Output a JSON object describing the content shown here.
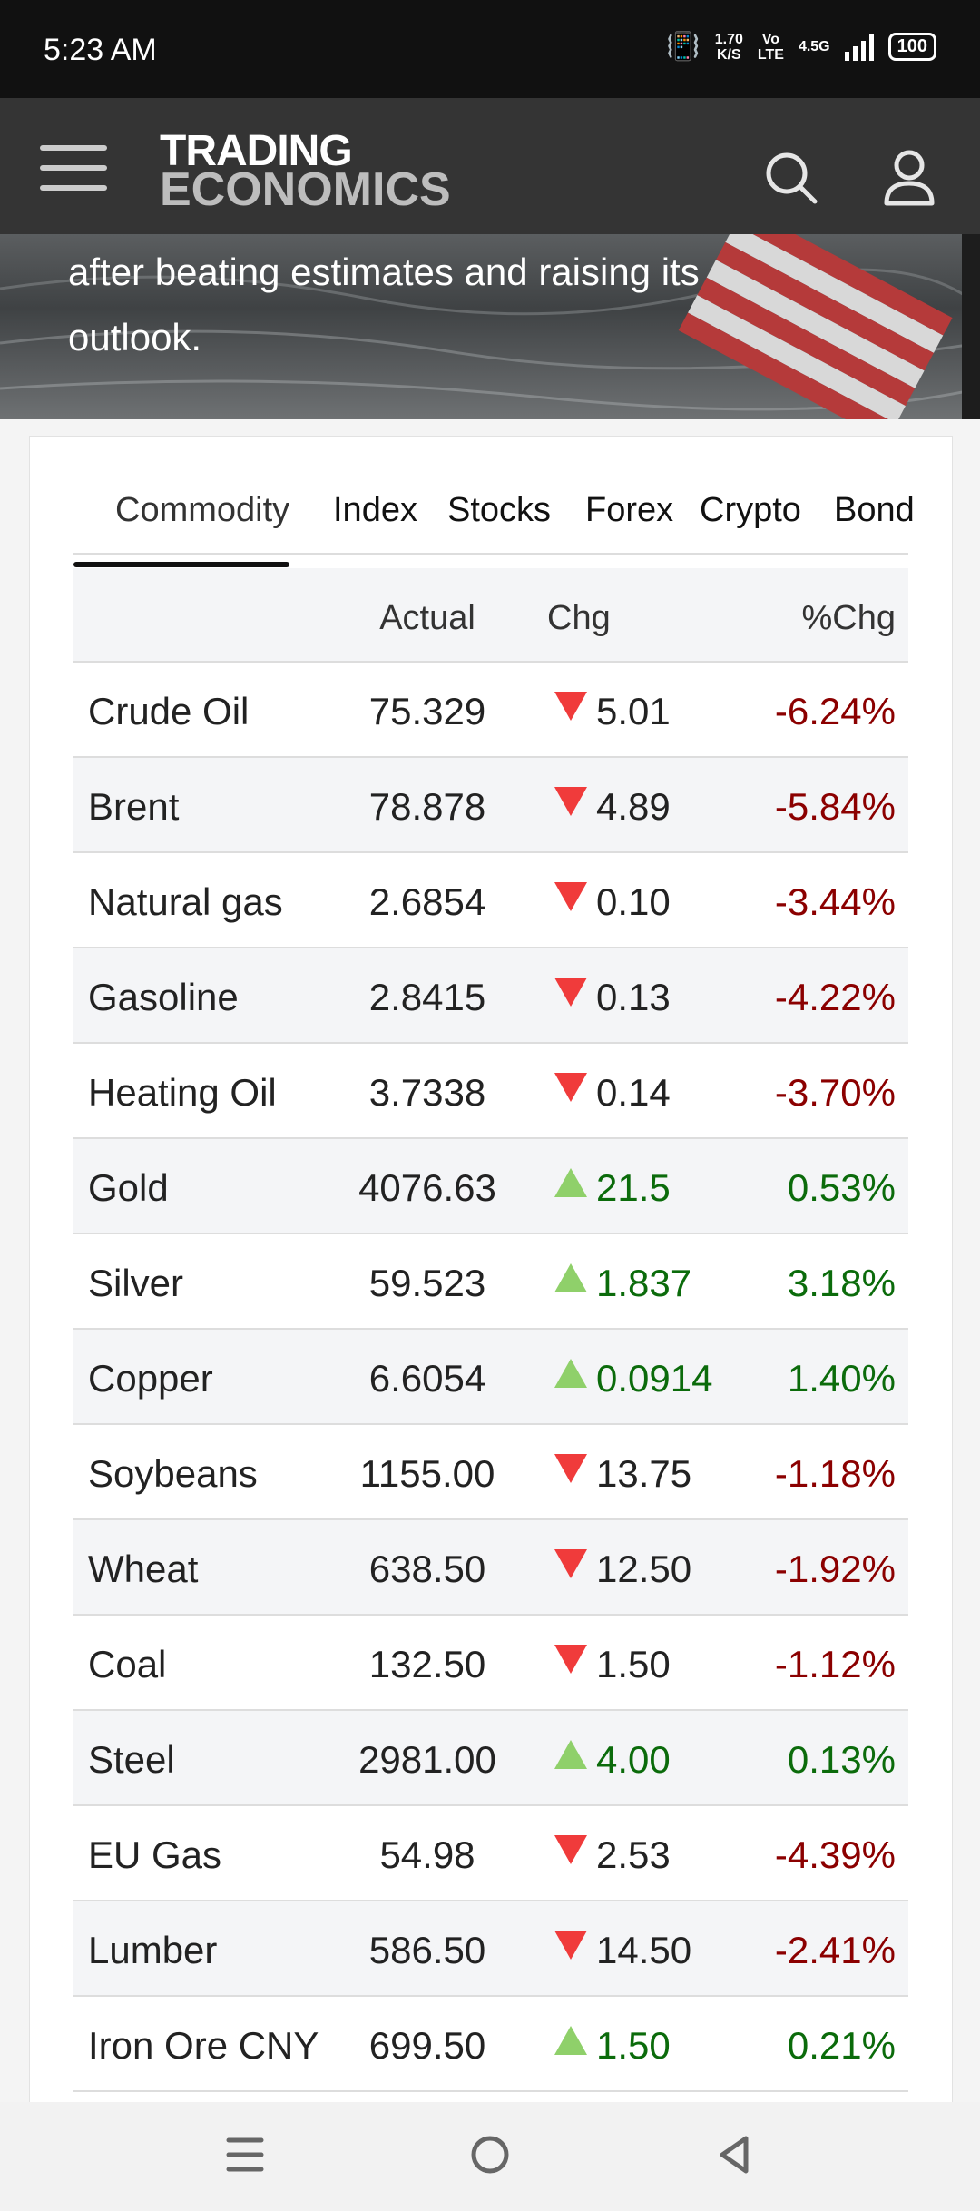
{
  "status_bar": {
    "time": "5:23 AM",
    "net_speed_value": "1.70",
    "net_speed_unit": "K/S",
    "volte_top": "Vo",
    "volte_bottom": "LTE",
    "network": "4.5G",
    "battery": "100"
  },
  "header": {
    "logo_line1": "TRADING",
    "logo_line2": "ECONOMICS"
  },
  "hero": {
    "text": "after beating estimates and raising its outlook."
  },
  "tabs": [
    "Commodity",
    "Index",
    "Stocks",
    "Forex",
    "Crypto",
    "Bond"
  ],
  "table": {
    "headers": {
      "name": "",
      "actual": "Actual",
      "chg": "Chg",
      "pct": "%Chg"
    },
    "rows": [
      {
        "name": "Crude Oil",
        "actual": "75.329",
        "chg": "5.01",
        "pct": "-6.24%",
        "dir": "down"
      },
      {
        "name": "Brent",
        "actual": "78.878",
        "chg": "4.89",
        "pct": "-5.84%",
        "dir": "down"
      },
      {
        "name": "Natural gas",
        "actual": "2.6854",
        "chg": "0.10",
        "pct": "-3.44%",
        "dir": "down"
      },
      {
        "name": "Gasoline",
        "actual": "2.8415",
        "chg": "0.13",
        "pct": "-4.22%",
        "dir": "down"
      },
      {
        "name": "Heating Oil",
        "actual": "3.7338",
        "chg": "0.14",
        "pct": "-3.70%",
        "dir": "down"
      },
      {
        "name": "Gold",
        "actual": "4076.63",
        "chg": "21.5",
        "pct": "0.53%",
        "dir": "up"
      },
      {
        "name": "Silver",
        "actual": "59.523",
        "chg": "1.837",
        "pct": "3.18%",
        "dir": "up"
      },
      {
        "name": "Copper",
        "actual": "6.6054",
        "chg": "0.0914",
        "pct": "1.40%",
        "dir": "up"
      },
      {
        "name": "Soybeans",
        "actual": "1155.00",
        "chg": "13.75",
        "pct": "-1.18%",
        "dir": "down"
      },
      {
        "name": "Wheat",
        "actual": "638.50",
        "chg": "12.50",
        "pct": "-1.92%",
        "dir": "down"
      },
      {
        "name": "Coal",
        "actual": "132.50",
        "chg": "1.50",
        "pct": "-1.12%",
        "dir": "down"
      },
      {
        "name": "Steel",
        "actual": "2981.00",
        "chg": "4.00",
        "pct": "0.13%",
        "dir": "up"
      },
      {
        "name": "EU Gas",
        "actual": "54.98",
        "chg": "2.53",
        "pct": "-4.39%",
        "dir": "down"
      },
      {
        "name": "Lumber",
        "actual": "586.50",
        "chg": "14.50",
        "pct": "-2.41%",
        "dir": "down"
      },
      {
        "name": "Iron Ore CNY",
        "actual": "699.50",
        "chg": "1.50",
        "pct": "0.21%",
        "dir": "up"
      }
    ]
  },
  "colors": {
    "negative_text": "#8b0000",
    "positive_text": "#0b6b0b",
    "down_arrow": "#f03b3b",
    "up_arrow": "#8fd06a",
    "header_bg": "#343434"
  },
  "icons": {
    "menu": "hamburger-icon",
    "search": "search-icon",
    "user": "user-icon",
    "down": "triangle-down-icon",
    "up": "triangle-up-icon",
    "nav_recents": "recents-icon",
    "nav_home": "home-icon",
    "nav_back": "back-icon"
  }
}
